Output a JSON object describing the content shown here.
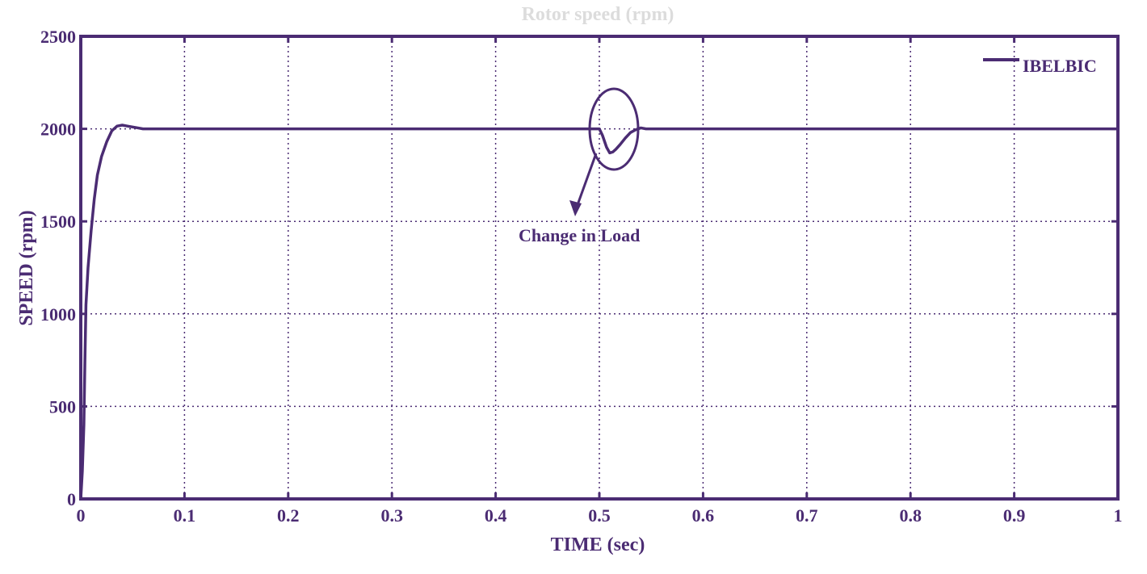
{
  "chart_data": {
    "type": "line",
    "title": "Rotor speed (rpm)",
    "xlabel": "TIME (sec)",
    "ylabel": "SPEED (rpm)",
    "xlim": [
      0,
      1
    ],
    "ylim": [
      0,
      2500
    ],
    "xticks": [
      0,
      0.1,
      0.2,
      0.3,
      0.4,
      0.5,
      0.6,
      0.7,
      0.8,
      0.9,
      1
    ],
    "yticks": [
      0,
      500,
      1000,
      1500,
      2000,
      2500
    ],
    "xtick_labels": [
      "0",
      "0.1",
      "0.2",
      "0.3",
      "0.4",
      "0.5",
      "0.6",
      "0.7",
      "0.8",
      "0.9",
      "1"
    ],
    "ytick_labels": [
      "0",
      "500",
      "1000",
      "1500",
      "2000",
      "2500"
    ],
    "grid": true,
    "legend_position": "top-right",
    "series": [
      {
        "name": "IBELBIC",
        "x": [
          0,
          0.0015,
          0.003,
          0.004,
          0.005,
          0.007,
          0.01,
          0.013,
          0.016,
          0.02,
          0.025,
          0.03,
          0.035,
          0.04,
          0.045,
          0.05,
          0.055,
          0.06,
          0.1,
          0.2,
          0.3,
          0.4,
          0.49,
          0.5,
          0.503,
          0.507,
          0.51,
          0.513,
          0.516,
          0.52,
          0.525,
          0.53,
          0.535,
          0.54,
          0.545,
          0.6,
          0.7,
          0.8,
          0.9,
          1.0
        ],
        "y": [
          0,
          150,
          400,
          750,
          1050,
          1250,
          1450,
          1620,
          1750,
          1850,
          1930,
          1990,
          2015,
          2020,
          2015,
          2010,
          2005,
          2000,
          2000,
          2000,
          2000,
          2000,
          2000,
          2000,
          1965,
          1900,
          1870,
          1875,
          1890,
          1915,
          1950,
          1980,
          1995,
          2005,
          2000,
          2000,
          2000,
          2000,
          2000,
          2000
        ]
      }
    ],
    "annotations": [
      {
        "text": "Change in Load",
        "x": 0.5,
        "y": 1500
      }
    ],
    "colors": {
      "line": "#4b2c73",
      "axes": "#4b2c73",
      "grid": "#4b2c73",
      "text": "#4b2c73",
      "title": "#dcdcdc"
    }
  }
}
